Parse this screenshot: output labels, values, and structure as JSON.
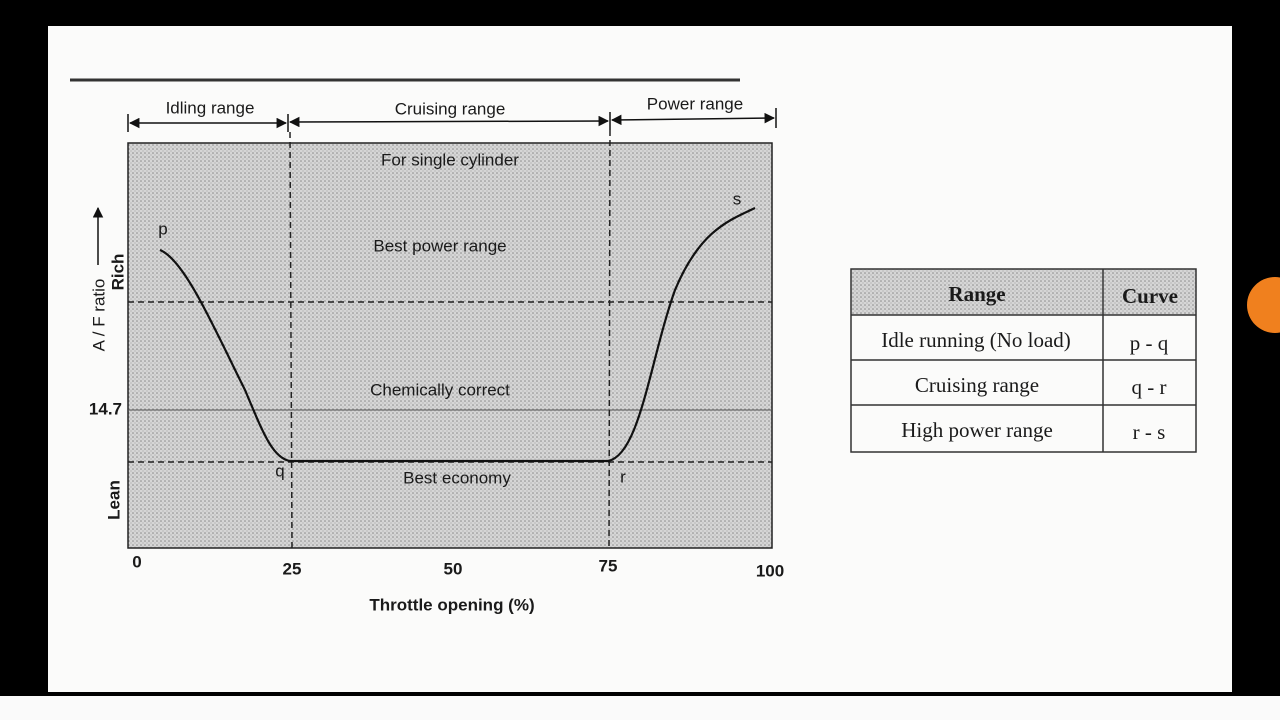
{
  "diagram": {
    "ranges": [
      "Idling range",
      "Cruising range",
      "Power range"
    ],
    "annotations": [
      "For single cylinder",
      "Best power range",
      "Chemically correct",
      "Best economy"
    ],
    "point_labels": [
      "p",
      "q",
      "r",
      "s"
    ],
    "y_axis_label": "A / F ratio",
    "y_labels": [
      "Rich",
      "14.7",
      "Lean"
    ],
    "x_ticks": [
      "0",
      "25",
      "50",
      "75",
      "100"
    ],
    "x_axis_label": "Throttle opening (%)"
  },
  "table": {
    "header": [
      "Range",
      "Curve"
    ],
    "rows": [
      [
        "Idle running (No load)",
        "p - q"
      ],
      [
        "Cruising range",
        "q - r"
      ],
      [
        "High power range",
        "r - s"
      ]
    ]
  }
}
